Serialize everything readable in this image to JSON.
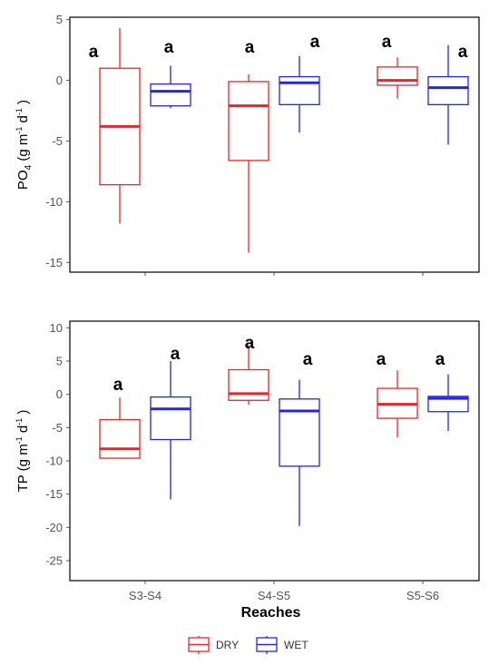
{
  "colors": {
    "dry": "#e8252a",
    "wet": "#2626d9",
    "frame": "#000000",
    "tick": "#555555"
  },
  "chart_data": [
    {
      "type": "boxplot",
      "panel": "top",
      "ylabel_main": "PO",
      "ylabel_sub": "4",
      "ylabel_units": " (g m",
      "ylabel_sup1": "-1",
      "ylabel_mid": " d",
      "ylabel_sup2": "-1",
      "ylabel_end": " )",
      "ylim": [
        -15.8,
        5.2
      ],
      "yticks": [
        5,
        0,
        -5,
        -10,
        -15
      ],
      "categories": [
        "S3-S4",
        "S4-S5",
        "S5-S6"
      ],
      "series": [
        {
          "name": "DRY",
          "boxes": [
            {
              "min": -11.8,
              "q1": -8.6,
              "median": -3.8,
              "q3": 1.0,
              "max": 4.3,
              "label": "a"
            },
            {
              "min": -14.2,
              "q1": -6.6,
              "median": -2.1,
              "q3": -0.1,
              "max": 0.5,
              "label": "a"
            },
            {
              "min": -1.5,
              "q1": -0.4,
              "median": 0.0,
              "q3": 1.1,
              "max": 1.9,
              "label": "a"
            }
          ]
        },
        {
          "name": "WET",
          "boxes": [
            {
              "min": -2.3,
              "q1": -2.1,
              "median": -0.9,
              "q3": -0.3,
              "max": 1.2,
              "label": "a"
            },
            {
              "min": -4.3,
              "q1": -2.0,
              "median": -0.2,
              "q3": 0.3,
              "max": 2.0,
              "label": "a"
            },
            {
              "min": -5.3,
              "q1": -2.0,
              "median": -0.6,
              "q3": 0.3,
              "max": 2.9,
              "label": "a"
            }
          ]
        }
      ]
    },
    {
      "type": "boxplot",
      "panel": "bottom",
      "ylabel_main": "TP",
      "ylabel_sub": "",
      "ylabel_units": " (g m",
      "ylabel_sup1": "-1",
      "ylabel_mid": " d",
      "ylabel_sup2": "-1",
      "ylabel_end": " )",
      "xlabel": "Reaches",
      "ylim": [
        -28,
        11
      ],
      "yticks": [
        10,
        5,
        0,
        -5,
        -10,
        -15,
        -20,
        -25
      ],
      "categories": [
        "S3-S4",
        "S4-S5",
        "S5-S6"
      ],
      "series": [
        {
          "name": "DRY",
          "boxes": [
            {
              "min": -9.6,
              "q1": -9.6,
              "median": -8.2,
              "q3": -3.8,
              "max": -0.5,
              "label": "a"
            },
            {
              "min": -1.6,
              "q1": -0.9,
              "median": 0.1,
              "q3": 3.7,
              "max": 7.4,
              "label": "a"
            },
            {
              "min": -6.5,
              "q1": -3.6,
              "median": -1.5,
              "q3": 0.9,
              "max": 3.6,
              "label": "a"
            }
          ]
        },
        {
          "name": "WET",
          "boxes": [
            {
              "min": -15.8,
              "q1": -6.8,
              "median": -2.2,
              "q3": -0.4,
              "max": 5.0,
              "label": "a"
            },
            {
              "min": -19.8,
              "q1": -10.8,
              "median": -2.5,
              "q3": -0.7,
              "max": 2.2,
              "label": "a"
            },
            {
              "min": -5.5,
              "q1": -2.6,
              "median": -0.6,
              "q3": -0.3,
              "max": 3.0,
              "label": "a"
            }
          ]
        }
      ]
    }
  ],
  "legend": {
    "items": [
      "DRY",
      "WET"
    ],
    "placement": "bottom-center"
  }
}
